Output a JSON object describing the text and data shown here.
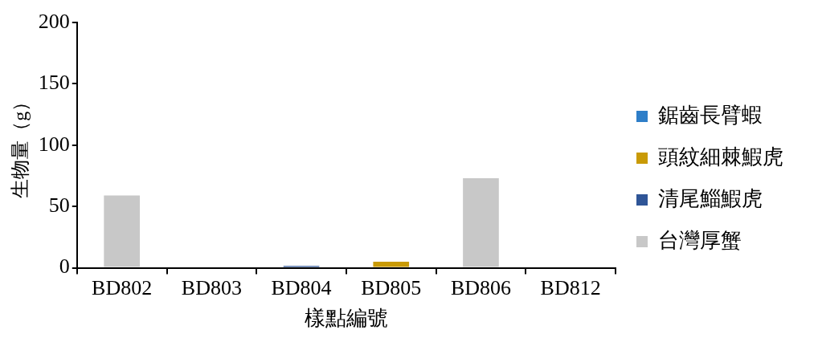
{
  "chart_data": {
    "type": "bar",
    "stacked": true,
    "xlabel": "樣點編號",
    "ylabel": "生物量（g）",
    "categories": [
      "BD802",
      "BD803",
      "BD804",
      "BD805",
      "BD806",
      "BD812"
    ],
    "series": [
      {
        "name": "鋸齒長臂蝦",
        "color": "#2e7ec8",
        "values": [
          0,
          0,
          0,
          0,
          0,
          0
        ]
      },
      {
        "name": "頭紋細棘鰕虎",
        "color": "#c99a06",
        "values": [
          0,
          0,
          0,
          5,
          0,
          0
        ]
      },
      {
        "name": "清尾鯔鰕虎",
        "color": "#2f5597",
        "values": [
          0,
          0,
          1.5,
          0,
          0,
          0
        ]
      },
      {
        "name": "台灣厚蟹",
        "color": "#c8c8c8",
        "values": [
          59,
          0,
          0,
          0,
          73,
          0
        ]
      }
    ],
    "ylim": [
      0,
      200
    ],
    "yticks": [
      0,
      50,
      100,
      150,
      200
    ],
    "grid": false,
    "legend": "right"
  }
}
